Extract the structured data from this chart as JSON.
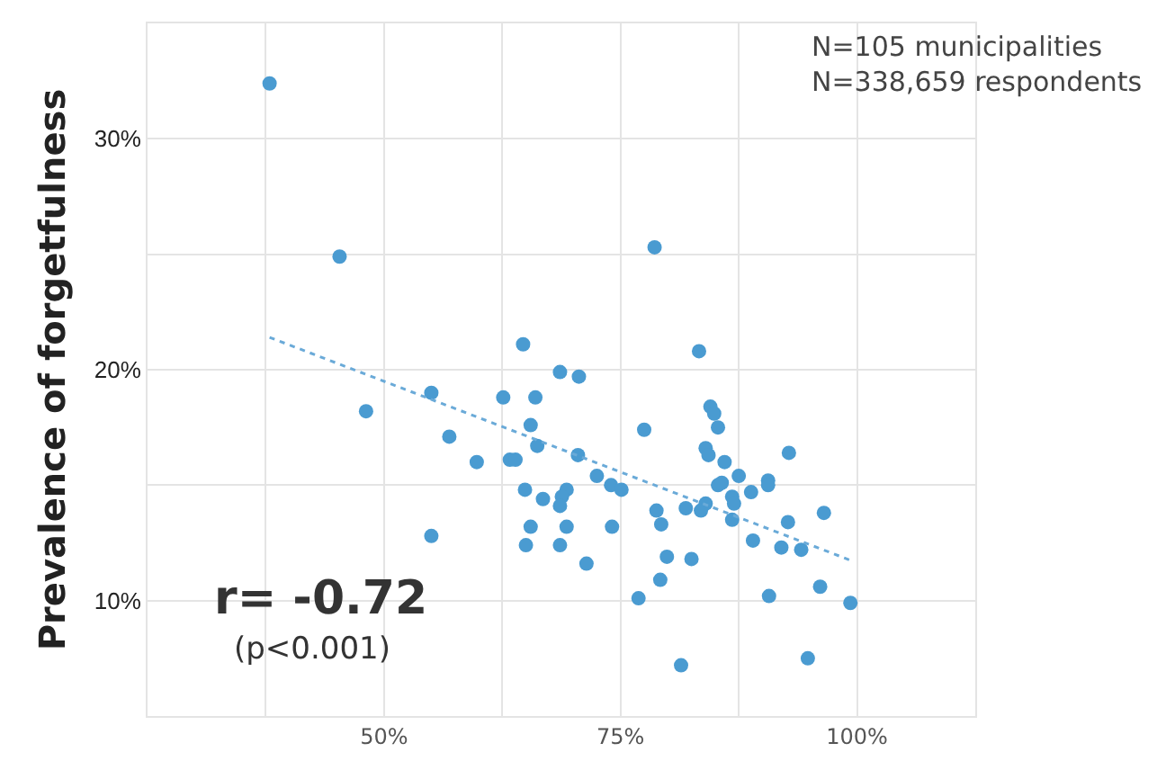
{
  "chart_data": {
    "type": "scatter",
    "ylabel": "Prevalence of forgetfulness",
    "annotations": [
      "N=105 municipalities\nN=338,659 respondents",
      "r= -0.72",
      "(p<0.001)"
    ],
    "xlim": [
      25,
      112.5
    ],
    "xticks": [
      {
        "value": 37.5,
        "label": null
      },
      {
        "value": 50,
        "label": "50%"
      },
      {
        "value": 62.5,
        "label": null
      },
      {
        "value": 75,
        "label": "75%"
      },
      {
        "value": 87.5,
        "label": null
      },
      {
        "value": 100,
        "label": "100%"
      }
    ],
    "ylim": [
      5,
      35
    ],
    "yticks": [
      {
        "value": 10,
        "label": "10%"
      },
      {
        "value": 15,
        "label": null
      },
      {
        "value": 20,
        "label": "20%"
      },
      {
        "value": 25,
        "label": null
      },
      {
        "value": 30,
        "label": "30%"
      }
    ],
    "grid": true,
    "series": [
      {
        "color": "#4a9bd1",
        "marker": "circle",
        "x": [
          37.9,
          45.3,
          48.1,
          55.0,
          56.9,
          55.0,
          59.8,
          62.6,
          63.3,
          63.9,
          64.7,
          66.0,
          65.5,
          66.2,
          64.9,
          66.8,
          68.6,
          70.6,
          70.5,
          69.3,
          68.8,
          68.6,
          65.5,
          69.3,
          65.0,
          68.6,
          71.4,
          72.5,
          74.0,
          75.1,
          74.1,
          76.9,
          77.5,
          78.6,
          83.3,
          84.5,
          84.9,
          85.3,
          84.0,
          84.3,
          86.0,
          87.5,
          85.3,
          85.7,
          88.8,
          90.6,
          90.6,
          92.8,
          86.8,
          87.0,
          86.8,
          84.0,
          83.5,
          81.9,
          78.8,
          79.3,
          92.7,
          96.5,
          89.0,
          92.0,
          94.1,
          79.9,
          82.5,
          79.2,
          90.7,
          96.1,
          99.3,
          81.4,
          94.8
        ],
        "values": [
          32.4,
          24.9,
          18.2,
          19.0,
          17.1,
          12.8,
          16.0,
          18.8,
          16.1,
          16.1,
          21.1,
          18.8,
          17.6,
          16.7,
          14.8,
          14.4,
          19.9,
          19.7,
          16.3,
          14.8,
          14.5,
          14.1,
          13.2,
          13.2,
          12.4,
          12.4,
          11.6,
          15.4,
          15.0,
          14.8,
          13.2,
          10.1,
          17.4,
          25.3,
          20.8,
          18.4,
          18.1,
          17.5,
          16.6,
          16.3,
          16.0,
          15.4,
          15.0,
          15.1,
          14.7,
          15.2,
          15.0,
          16.4,
          14.5,
          14.2,
          13.5,
          14.2,
          13.9,
          14.0,
          13.9,
          13.3,
          13.4,
          13.8,
          12.6,
          12.3,
          12.2,
          11.9,
          11.8,
          10.9,
          10.2,
          10.6,
          9.9,
          7.2,
          7.5
        ]
      },
      {
        "type": "line",
        "color": "#6aaad8",
        "line_style": "dotted",
        "x": [
          37.9,
          99.6
        ],
        "values": [
          21.4,
          11.7
        ]
      }
    ]
  }
}
